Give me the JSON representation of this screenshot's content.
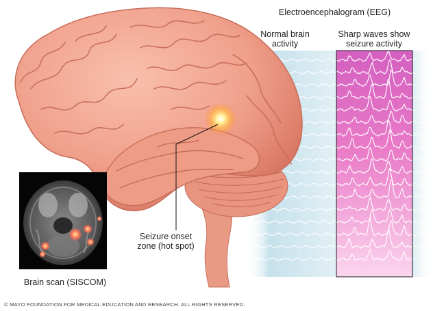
{
  "title": "Electroencephalogram (EEG)",
  "labels": {
    "normal": [
      "Normal brain",
      "activity"
    ],
    "sharp": [
      "Sharp waves show",
      "seizure activity"
    ],
    "onset": [
      "Seizure onset",
      "zone (hot spot)"
    ],
    "scan": "Brain scan (SISCOM)"
  },
  "copyright": "© MAYO FOUNDATION FOR MEDICAL EDUCATION AND RESEARCH. ALL RIGHTS RESERVED.",
  "colors": {
    "brain": "#f1a590",
    "brain_shadow": "#d97a66",
    "hot_spot": "#ffe070",
    "eeg_panel": "#f17fc4",
    "eeg_wave": "#ffffff",
    "normal_wave_bg": "#cfe6ee"
  }
}
